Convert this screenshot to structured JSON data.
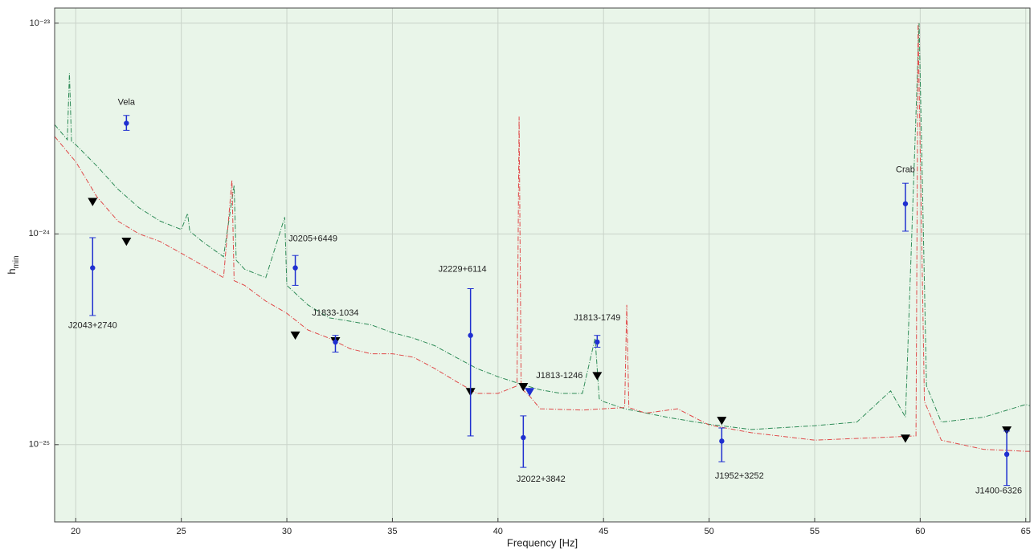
{
  "chart_data": {
    "type": "scatter",
    "xlabel": "Frequency [Hz]",
    "ylabel": {
      "text": "h",
      "subscript": "min"
    },
    "xlim": [
      19,
      65.2
    ],
    "ylim": [
      4.3e-26,
      1.18e-23
    ],
    "log_y": true,
    "grid": true,
    "background": "#e9f5e9",
    "xticks": [
      20,
      25,
      30,
      35,
      40,
      45,
      50,
      55,
      60,
      65
    ],
    "yticks": [
      {
        "value": 1e-25,
        "label": "10⁻²⁵"
      },
      {
        "value": 1e-24,
        "label": "10⁻²⁴"
      },
      {
        "value": 1e-23,
        "label": "10⁻²³"
      }
    ],
    "curves": [
      {
        "color": "#2e8b57",
        "x": [
          19,
          19.6,
          19.7,
          19.8,
          20,
          21,
          22,
          23,
          24,
          25,
          25.3,
          25.4,
          26,
          27,
          27.5,
          27.6,
          28,
          29,
          29.9,
          30,
          31,
          32,
          33,
          34,
          35,
          36,
          37,
          38,
          39,
          40,
          41,
          42,
          43,
          44,
          44.6,
          44.8,
          45,
          46,
          48,
          50,
          52,
          55,
          57,
          58.6,
          59.3,
          59.95,
          60.3,
          61,
          63,
          65,
          65.2
        ],
        "values": [
          3.3e-24,
          2.8e-24,
          5.8e-24,
          2.75e-24,
          2.65e-24,
          2.1e-24,
          1.63e-24,
          1.33e-24,
          1.15e-24,
          1.05e-24,
          1.25e-24,
          1.03e-24,
          9.2e-25,
          7.8e-25,
          1.7e-24,
          7.5e-25,
          6.8e-25,
          6.2e-25,
          1.2e-24,
          5.7e-25,
          4.6e-25,
          4e-25,
          3.85e-25,
          3.7e-25,
          3.4e-25,
          3.2e-25,
          2.95e-25,
          2.6e-25,
          2.3e-25,
          2.1e-25,
          1.95e-25,
          1.82e-25,
          1.75e-25,
          1.75e-25,
          3.2e-25,
          1.65e-25,
          1.6e-25,
          1.48e-25,
          1.35e-25,
          1.25e-25,
          1.18e-25,
          1.23e-25,
          1.28e-25,
          1.8e-25,
          1.35e-25,
          1e-23,
          1.9e-25,
          1.28e-25,
          1.35e-25,
          1.55e-25,
          1.53e-25
        ]
      },
      {
        "color": "#e04848",
        "x": [
          19,
          20,
          21,
          22,
          23,
          24,
          25,
          26,
          27,
          27.4,
          27.5,
          28,
          29,
          30,
          31,
          32,
          33,
          34,
          35,
          36,
          37,
          38,
          39,
          40,
          40.9,
          41,
          41.1,
          41.5,
          42,
          44,
          45,
          46,
          46.1,
          46.2,
          47,
          48.5,
          50,
          52,
          55,
          58,
          59.8,
          59.9,
          60.2,
          61,
          63,
          65,
          65.2
        ],
        "values": [
          2.9e-24,
          2.2e-24,
          1.5e-24,
          1.15e-24,
          1e-24,
          9.2e-25,
          8.1e-25,
          7.1e-25,
          6.2e-25,
          1.8e-24,
          6e-25,
          5.7e-25,
          4.8e-25,
          4.2e-25,
          3.5e-25,
          3.2e-25,
          2.85e-25,
          2.7e-25,
          2.7e-25,
          2.6e-25,
          2.3e-25,
          2e-25,
          1.75e-25,
          1.75e-25,
          1.9e-25,
          3.6e-24,
          1.85e-25,
          1.7e-25,
          1.48e-25,
          1.46e-25,
          1.48e-25,
          1.5e-25,
          4.6e-25,
          1.5e-25,
          1.41e-25,
          1.48e-25,
          1.24e-25,
          1.14e-25,
          1.05e-25,
          1.08e-25,
          1.1e-25,
          1e-23,
          1.6e-25,
          1.05e-25,
          9.5e-26,
          9.3e-26,
          9.3e-26
        ]
      }
    ],
    "pulsars": {
      "color": "#1f2fd0",
      "names": [
        "Vela",
        "J2043+2740",
        "J0205+6449",
        "J1833-1034",
        "J2229+6114",
        "J2022+3842",
        "J1813-1749",
        "J1952+3252",
        "J1400-6326",
        "Crab"
      ],
      "x": [
        22.4,
        20.8,
        30.4,
        32.3,
        38.7,
        41.2,
        44.7,
        50.6,
        64.1,
        59.3
      ],
      "values": [
        3.35e-24,
        6.9e-25,
        6.9e-25,
        3.07e-25,
        3.3e-25,
        1.08e-25,
        3.07e-25,
        1.04e-25,
        9e-26,
        1.39e-24
      ],
      "upper": [
        3.65e-24,
        9.6e-25,
        7.9e-25,
        3.3e-25,
        5.5e-25,
        1.37e-25,
        3.3e-25,
        1.2e-25,
        1.16e-25,
        1.74e-24
      ],
      "lower": [
        3.1e-24,
        4.1e-25,
        5.7e-25,
        2.75e-25,
        1.1e-25,
        7.8e-26,
        2.9e-25,
        8.3e-26,
        6.4e-26,
        1.03e-24
      ]
    },
    "upper_limits": [
      {
        "color": "#000000",
        "x": [
          20.8,
          22.4,
          30.4,
          32.3,
          38.7,
          41.2,
          44.7,
          50.6,
          59.3,
          64.1
        ],
        "values": [
          1.42e-24,
          9.2e-25,
          3.3e-25,
          3.1e-25,
          1.78e-25,
          1.88e-25,
          2.12e-25,
          1.3e-25,
          1.07e-25,
          1.17e-25
        ]
      },
      {
        "color": "#1f2fd0",
        "names": [
          "J1813-1246"
        ],
        "x": [
          41.5
        ],
        "values": [
          1.78e-25
        ]
      }
    ]
  }
}
